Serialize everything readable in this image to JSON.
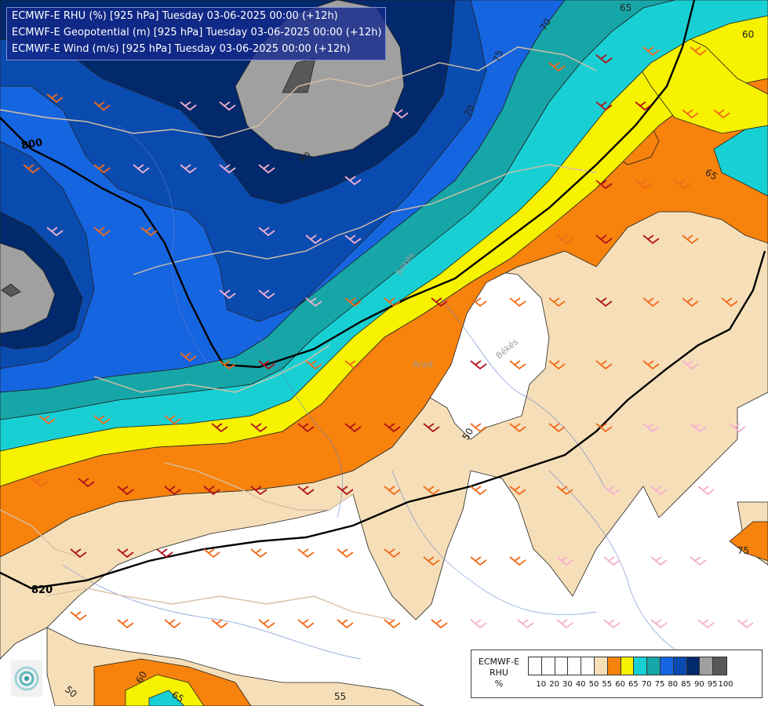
{
  "header": {
    "lines": [
      "ECMWF-E RHU (%) [925 hPa] Tuesday 03-06-2025 00:00 (+12h)",
      "ECMWF-E Geopotential (m) [925 hPa] Tuesday 03-06-2025 00:00 (+12h)",
      "ECMWF-E Wind (m/s) [925 hPa] Tuesday 03-06-2025 00:00 (+12h)"
    ]
  },
  "map_labels": {
    "geopotential": [
      "800",
      "820"
    ],
    "rhu_contours": [
      "65",
      "70",
      "75",
      "70",
      "90",
      "60",
      "65",
      "50",
      "50",
      "60",
      "65",
      "55",
      "75"
    ],
    "places": [
      "Békés",
      "Békés",
      "Arad"
    ]
  },
  "legend": {
    "title_lines": [
      "ECMWF-E",
      "RHU",
      "%"
    ],
    "colors": [
      "#ffffff",
      "#ffffff",
      "#ffffff",
      "#ffffff",
      "#ffffff",
      "#f6dfb8",
      "#f7820c",
      "#f6f200",
      "#18d0d4",
      "#17a6a8",
      "#1665e0",
      "#0a4bb0",
      "#02296c",
      "#a0a0a0",
      "#585858"
    ],
    "ticks": [
      "10",
      "20",
      "30",
      "40",
      "50",
      "55",
      "60",
      "65",
      "70",
      "75",
      "80",
      "85",
      "90",
      "95",
      "100"
    ]
  },
  "colors": {
    "rh_95": "#a0a0a0",
    "rh_90": "#02296c",
    "rh_85": "#0a4bb0",
    "rh_80": "#1665e0",
    "rh_75": "#17a6a8",
    "rh_70": "#18d0d4",
    "rh_65": "#f6f200",
    "rh_60": "#f7820c",
    "rh_55": "#f6dfb8",
    "geopotential_line": "#000000"
  },
  "icons": [
    "wind-barb-icon",
    "ecmwf-logo-icon"
  ]
}
